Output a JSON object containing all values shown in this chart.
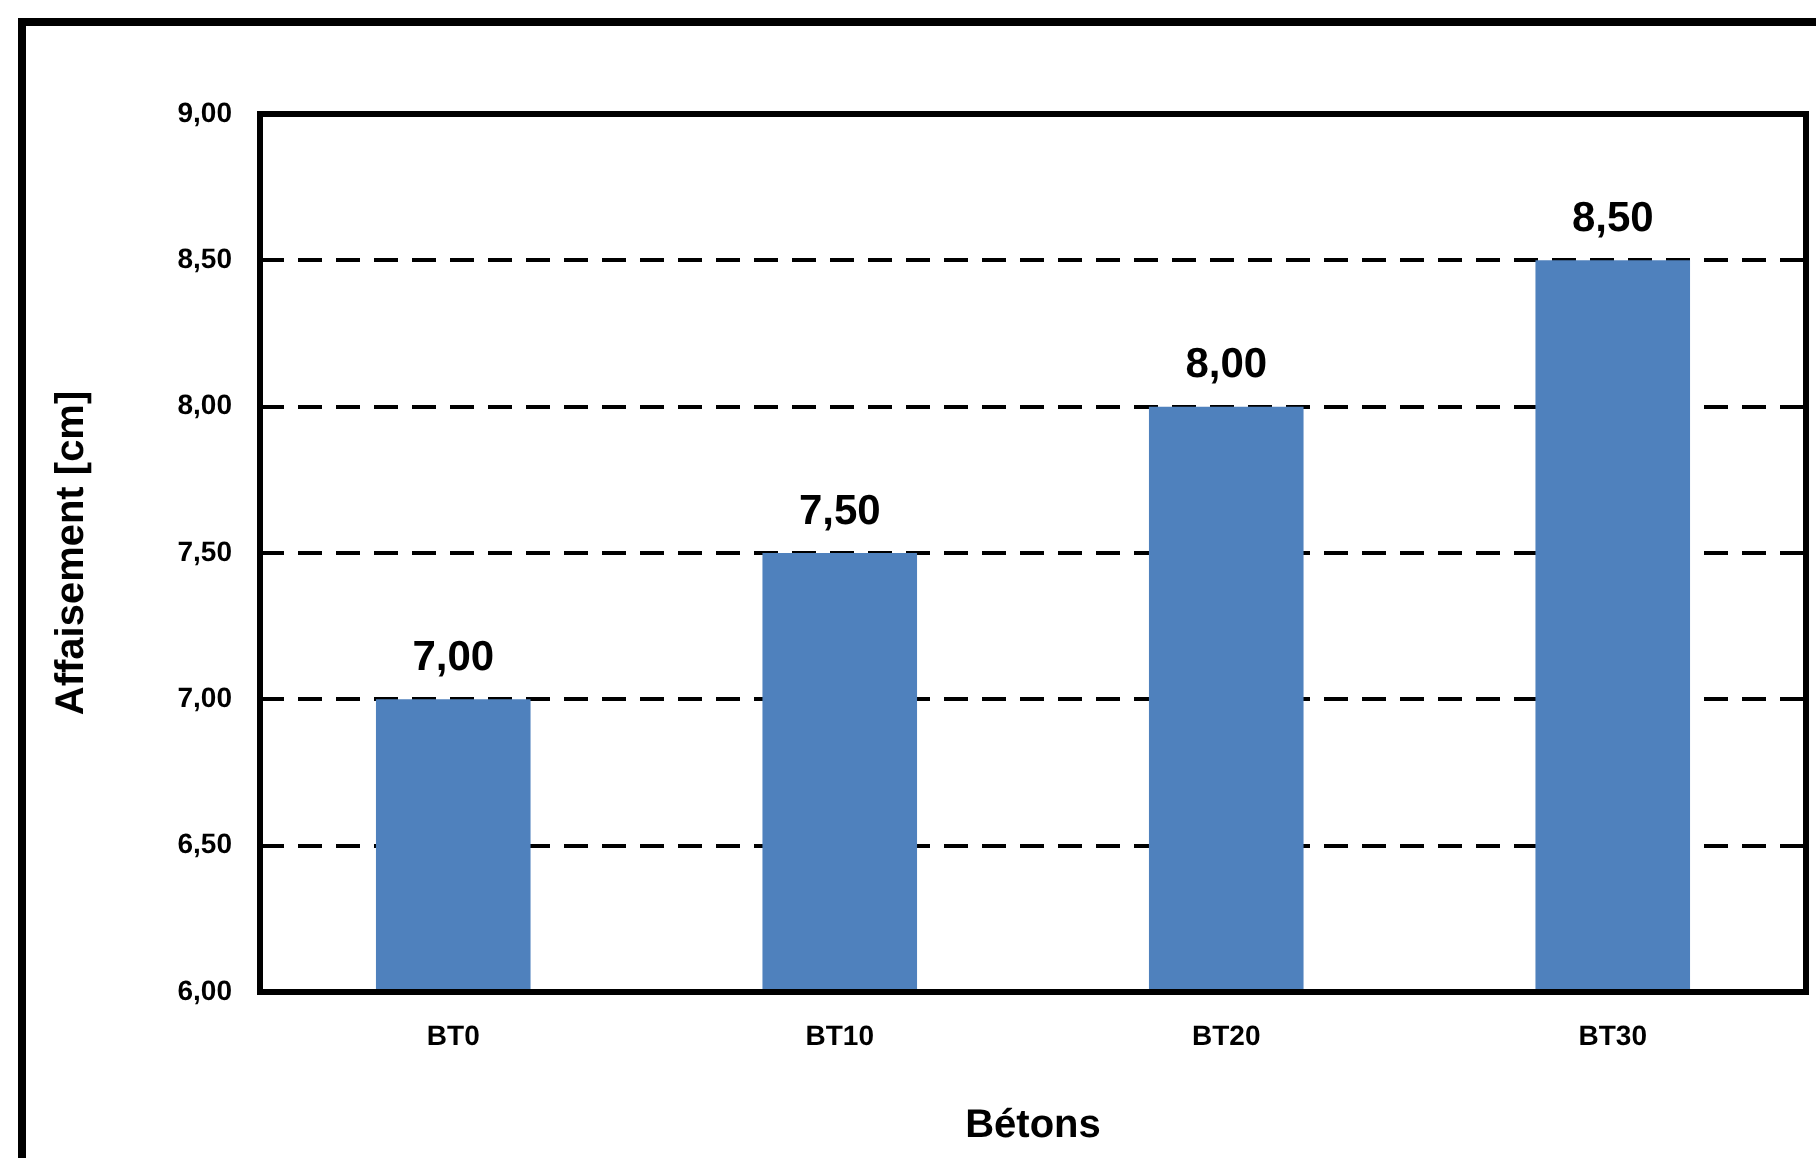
{
  "chart_data": {
    "type": "bar",
    "xlabel": "Bétons",
    "ylabel": "Affaisement [cm]",
    "categories": [
      "BT0",
      "BT10",
      "BT20",
      "BT30"
    ],
    "values": [
      7.0,
      7.5,
      8.0,
      8.5
    ],
    "color": "#4f81bd",
    "value_labels": [
      "7,00",
      "7,50",
      "8,00",
      "8,50"
    ],
    "ylim": [
      6,
      9
    ],
    "yticks": [
      {
        "value": 6,
        "label": "6,00"
      },
      {
        "value": 6.5,
        "label": "6,50"
      },
      {
        "value": 7,
        "label": "7,00"
      },
      {
        "value": 7.5,
        "label": "7,50"
      },
      {
        "value": 8,
        "label": "8,00"
      },
      {
        "value": 8.5,
        "label": "8,50"
      },
      {
        "value": 9,
        "label": "9,00"
      }
    ],
    "grid": "y",
    "legend": false
  }
}
